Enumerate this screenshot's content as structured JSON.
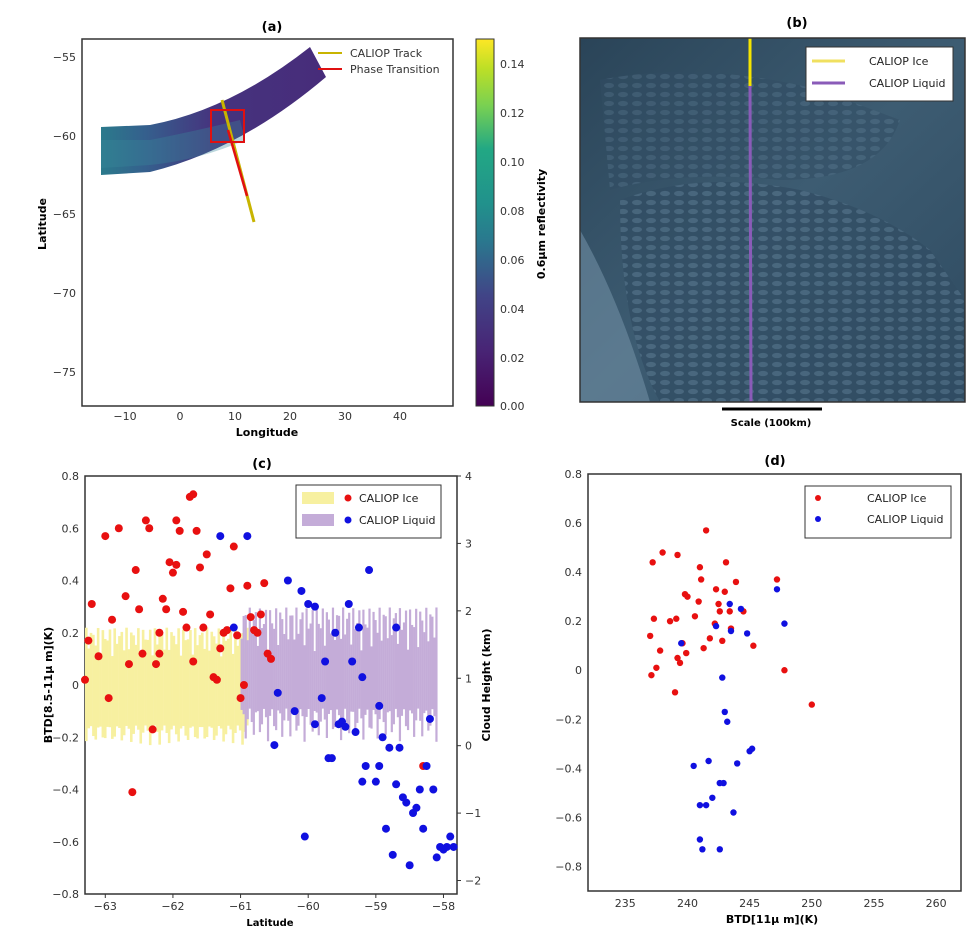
{
  "figure": {
    "panel_a": {
      "title": "(a)",
      "xlabel": "Longitude",
      "ylabel": "Latitude",
      "xticks": [
        -10,
        0,
        10,
        20,
        30,
        40
      ],
      "yticks": [
        -55,
        -60,
        -65,
        -70,
        -75
      ],
      "legend": [
        {
          "label": "CALIOP Track",
          "color": "#c8b400"
        },
        {
          "label": "Phase Transition",
          "color": "#e01010"
        }
      ],
      "colorbar": {
        "label": "0.6μm reflectivity",
        "ticks": [
          "0.14",
          "0.12",
          "0.10",
          "0.08",
          "0.06",
          "0.04",
          "0.02",
          "0.00"
        ]
      }
    },
    "panel_b": {
      "title": "(b)",
      "scale_label": "Scale (100km)",
      "legend": [
        {
          "label": "CALIOP Ice",
          "color": "#f0e060"
        },
        {
          "label": "CALIOP Liquid",
          "color": "#8a5bb8"
        }
      ]
    },
    "panel_c": {
      "title": "(c)",
      "xlabel": "Latitude",
      "ylabel": "BTD[8.5-11μ m](K)",
      "y2label": "Cloud Height (km)",
      "legend": [
        {
          "label": "CALIOP Ice",
          "color": "#e81010"
        },
        {
          "label": "CALIOP Liquid",
          "color": "#1010e0"
        }
      ]
    },
    "panel_d": {
      "title": "(d)",
      "xlabel": "BTD[11μ m](K)",
      "legend": [
        {
          "label": "CALIOP Ice",
          "color": "#e81010"
        },
        {
          "label": "CALIOP Liquid",
          "color": "#1010e0"
        }
      ]
    }
  },
  "chart_data": [
    {
      "type": "scatter",
      "panel": "c",
      "xlim": [
        -63.3,
        -57.8
      ],
      "ylim": [
        -0.8,
        0.8
      ],
      "y2lim": [
        -2.2,
        4.0
      ],
      "xticks": [
        -63,
        -62,
        -61,
        -60,
        -59,
        -58
      ],
      "yticks": [
        0.8,
        0.6,
        0.4,
        0.2,
        0.0,
        -0.2,
        -0.4,
        -0.6,
        -0.8
      ],
      "y2ticks": [
        4,
        3,
        2,
        1,
        0,
        -1,
        -2
      ],
      "series": [
        {
          "name": "CALIOP Ice",
          "color": "#e81010",
          "x": [
            -63.3,
            -63.2,
            -63.1,
            -63.0,
            -62.9,
            -62.8,
            -62.7,
            -62.6,
            -62.55,
            -62.5,
            -62.45,
            -62.4,
            -62.35,
            -62.3,
            -62.25,
            -62.2,
            -62.15,
            -62.1,
            -62.05,
            -62.0,
            -61.95,
            -61.9,
            -61.85,
            -61.8,
            -61.75,
            -61.7,
            -61.65,
            -61.6,
            -61.55,
            -61.5,
            -61.45,
            -61.4,
            -61.35,
            -61.3,
            -61.25,
            -61.2,
            -61.15,
            -61.1,
            -61.05,
            -61.0,
            -60.95,
            -60.9,
            -60.85,
            -60.8,
            -60.75,
            -60.7,
            -60.65,
            -60.6,
            -60.55,
            -63.25,
            -62.95,
            -62.65,
            -62.2,
            -61.95,
            -61.7,
            -58.3
          ],
          "y": [
            0.02,
            0.31,
            0.11,
            0.57,
            0.25,
            0.6,
            0.34,
            -0.41,
            0.44,
            0.29,
            0.12,
            0.63,
            0.6,
            -0.17,
            0.08,
            0.2,
            0.33,
            0.29,
            0.47,
            0.43,
            0.63,
            0.59,
            0.28,
            0.22,
            0.72,
            0.73,
            0.59,
            0.45,
            0.22,
            0.5,
            0.27,
            0.03,
            0.02,
            0.14,
            0.2,
            0.21,
            0.37,
            0.53,
            0.19,
            -0.05,
            0.0,
            0.38,
            0.26,
            0.21,
            0.2,
            0.27,
            0.39,
            0.12,
            0.1,
            0.17,
            -0.05,
            0.08,
            0.12,
            0.46,
            0.09,
            -0.31
          ]
        },
        {
          "name": "CALIOP Liquid",
          "color": "#1010e0",
          "x": [
            -61.1,
            -60.9,
            -60.5,
            -60.3,
            -60.1,
            -60.05,
            -60.0,
            -59.9,
            -59.8,
            -59.7,
            -59.65,
            -59.6,
            -59.5,
            -59.45,
            -59.4,
            -59.35,
            -59.3,
            -59.25,
            -59.2,
            -59.15,
            -59.1,
            -59.0,
            -58.95,
            -58.9,
            -58.85,
            -58.8,
            -58.75,
            -58.7,
            -58.65,
            -58.6,
            -58.55,
            -58.5,
            -58.45,
            -58.4,
            -58.35,
            -58.3,
            -58.25,
            -58.2,
            -58.15,
            -58.1,
            -58.05,
            -58.0,
            -57.95,
            -57.9,
            -57.85,
            -61.3,
            -60.45,
            -60.2,
            -59.9,
            -59.75,
            -59.55,
            -59.2,
            -58.95,
            -58.7
          ],
          "y": [
            0.22,
            0.57,
            -0.23,
            0.4,
            0.36,
            -0.58,
            0.31,
            0.3,
            -0.05,
            -0.28,
            -0.28,
            0.2,
            -0.14,
            -0.16,
            0.31,
            0.09,
            -0.18,
            0.22,
            -0.37,
            -0.31,
            0.44,
            -0.37,
            -0.31,
            -0.2,
            -0.55,
            -0.24,
            -0.65,
            -0.38,
            -0.24,
            -0.43,
            -0.45,
            -0.69,
            -0.49,
            -0.47,
            -0.4,
            -0.55,
            -0.31,
            -0.13,
            -0.4,
            -0.66,
            -0.62,
            -0.63,
            -0.62,
            -0.58,
            -0.62,
            0.57,
            -0.03,
            -0.1,
            -0.15,
            0.09,
            -0.15,
            0.03,
            -0.08,
            0.22
          ]
        }
      ]
    },
    {
      "type": "scatter",
      "panel": "d",
      "xlim": [
        232,
        262
      ],
      "ylim": [
        -0.9,
        0.8
      ],
      "xticks": [
        235,
        240,
        245,
        250,
        255,
        260
      ],
      "yticks": [
        0.8,
        0.6,
        0.4,
        0.2,
        0.0,
        -0.2,
        -0.4,
        -0.6,
        -0.8
      ],
      "series": [
        {
          "name": "CALIOP Ice",
          "color": "#e81010",
          "x": [
            237.0,
            237.2,
            237.3,
            237.5,
            237.8,
            238.0,
            238.6,
            239.1,
            239.2,
            239.2,
            239.4,
            239.6,
            239.8,
            239.9,
            240.0,
            240.6,
            240.9,
            241.1,
            241.3,
            241.5,
            241.8,
            242.2,
            242.3,
            242.5,
            242.6,
            242.8,
            243.0,
            243.1,
            243.4,
            243.9,
            244.5,
            245.3,
            247.2,
            247.8,
            250.0,
            237.1,
            239.0,
            241.0,
            243.5
          ],
          "y": [
            0.14,
            0.44,
            0.21,
            0.01,
            0.08,
            0.48,
            0.2,
            0.21,
            0.47,
            0.05,
            0.03,
            0.11,
            0.31,
            0.07,
            0.3,
            0.22,
            0.28,
            0.37,
            0.09,
            0.57,
            0.13,
            0.19,
            0.33,
            0.27,
            0.24,
            0.12,
            0.32,
            0.44,
            0.24,
            0.36,
            0.24,
            0.1,
            0.37,
            0.0,
            -0.14,
            -0.02,
            -0.09,
            0.42,
            0.17
          ]
        },
        {
          "name": "CALIOP Liquid",
          "color": "#1010e0",
          "x": [
            239.5,
            240.5,
            241.0,
            241.2,
            241.5,
            241.7,
            242.0,
            242.3,
            242.6,
            242.8,
            242.9,
            243.0,
            243.2,
            243.5,
            243.7,
            244.0,
            244.3,
            244.8,
            245.0,
            245.2,
            247.2,
            247.8,
            241.0,
            242.6,
            243.4
          ],
          "y": [
            0.11,
            -0.39,
            -0.69,
            -0.73,
            -0.55,
            -0.37,
            -0.52,
            0.18,
            -0.46,
            -0.03,
            -0.46,
            -0.17,
            -0.21,
            0.16,
            -0.58,
            -0.38,
            0.25,
            0.15,
            -0.33,
            -0.32,
            0.33,
            0.19,
            -0.55,
            -0.73,
            0.27
          ]
        }
      ]
    }
  ]
}
